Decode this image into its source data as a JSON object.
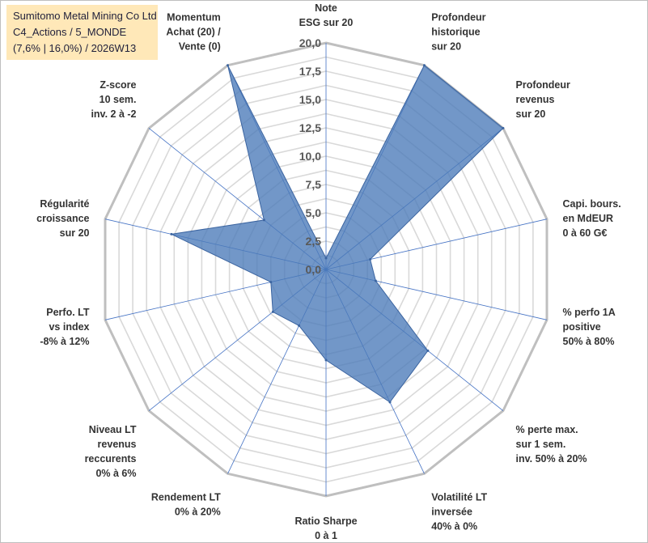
{
  "title": {
    "line1": "Sumitomo Metal Mining Co Ltd",
    "line2": "C4_Actions / 5_MONDE",
    "line3": "(7,6% | 16,0%) / 2026W13"
  },
  "chart_data": {
    "type": "radar",
    "rmin": 0,
    "rmax": 20,
    "grid_step": 1.25,
    "tick_values": [
      0,
      2.5,
      5,
      7.5,
      10,
      12.5,
      15,
      17.5,
      20
    ],
    "tick_labels": [
      "0,0",
      "2,5",
      "5,0",
      "7,5",
      "10,0",
      "12,5",
      "15,0",
      "17,5",
      "20,0"
    ],
    "series_color": "#4a7ab8",
    "axes": [
      {
        "lines": [
          "Note",
          "ESG sur 20"
        ],
        "value": 1.0
      },
      {
        "lines": [
          "Profondeur",
          "historique",
          "sur 20"
        ],
        "value": 20.0
      },
      {
        "lines": [
          "Profondeur",
          "revenus",
          "sur 20"
        ],
        "value": 20.0
      },
      {
        "lines": [
          "Capi. bours.",
          "en MdEUR",
          "0 à 60 G€"
        ],
        "value": 4.0
      },
      {
        "lines": [
          "% perfo 1A",
          "positive",
          "50% à 80%"
        ],
        "value": 4.5
      },
      {
        "lines": [
          "% perte max.",
          "sur 1 sem.",
          "inv. 50% à 20%"
        ],
        "value": 11.5
      },
      {
        "lines": [
          "Volatilité LT",
          "inversée",
          "40% à 0%"
        ],
        "value": 13.0
      },
      {
        "lines": [
          "Ratio Sharpe",
          "0 à 1"
        ],
        "value": 8.0
      },
      {
        "lines": [
          "Rendement LT",
          "0% à 20%"
        ],
        "value": 5.5
      },
      {
        "lines": [
          "Niveau LT",
          "revenus",
          "reccurents",
          "0% à 6%"
        ],
        "value": 6.0
      },
      {
        "lines": [
          "Perfo. LT",
          "vs index",
          "-8% à 12%"
        ],
        "value": 5.0
      },
      {
        "lines": [
          "Régularité",
          "croissance",
          "sur 20"
        ],
        "value": 14.0
      },
      {
        "lines": [
          "Z-score",
          "10 sem.",
          "inv. 2 à -2"
        ],
        "value": 7.0
      },
      {
        "lines": [
          "Momentum",
          "Achat (20) /",
          "Vente (0)"
        ],
        "value": 20.0
      }
    ]
  }
}
